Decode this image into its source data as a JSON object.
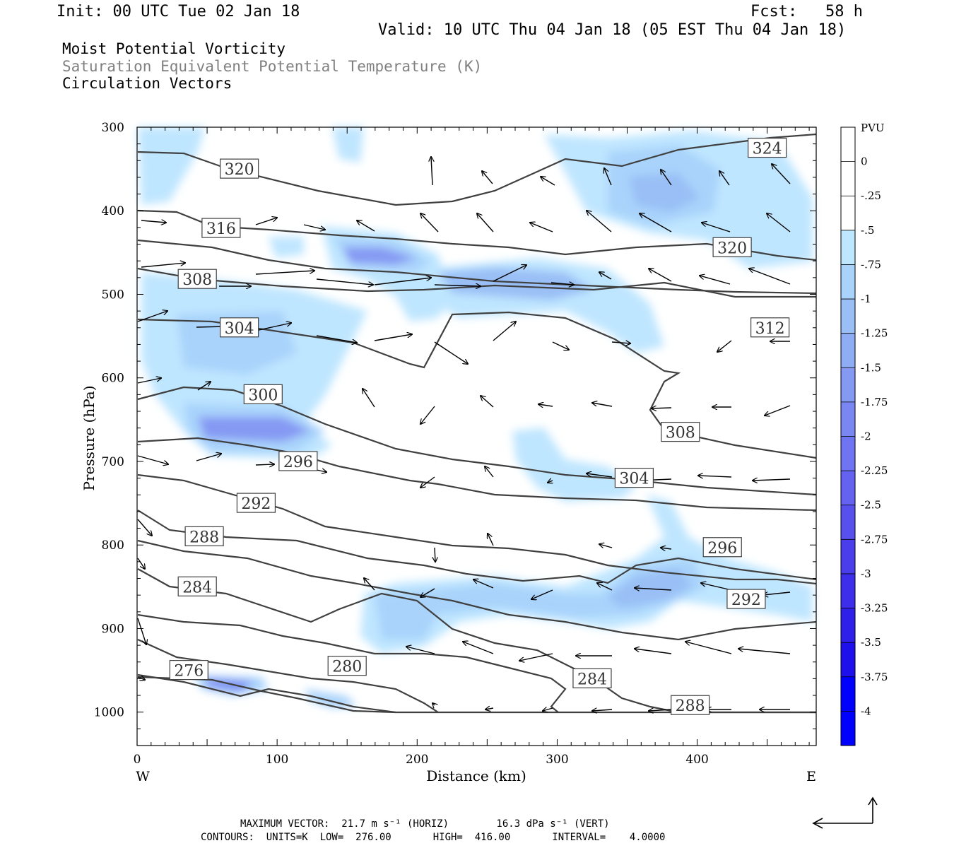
{
  "header": {
    "init": "Init: 00 UTC Tue 02 Jan 18",
    "fcst": "Fcst:   58 h",
    "valid": "Valid: 10 UTC Thu 04 Jan 18 (05 EST Thu 04 Jan 18)",
    "line1": "Moist Potential Vorticity",
    "line2": "Saturation Equivalent Potential Temperature (K)",
    "line3": "Circulation Vectors"
  },
  "footer": {
    "max_vector": "MAXIMUM VECTOR:  21.7 m s⁻¹ (HORIZ)        16.3 dPa s⁻¹ (VERT)",
    "contours": "CONTOURS:  UNITS=K  LOW=  276.00       HIGH=  416.00       INTERVAL=    4.0000"
  },
  "colors": {
    "line": "#404040",
    "pv_fills": [
      "#ffffff",
      "#ffffff",
      "#bfe6ff",
      "#a9d3fb",
      "#99bff6",
      "#8fadf5",
      "#8599f3",
      "#7a86f2",
      "#6f74f0",
      "#6462ee",
      "#5850ed",
      "#4a3eec",
      "#3c2eeb",
      "#2e20ea",
      "#1e10ea",
      "#0000ff"
    ]
  },
  "chart_data": {
    "type": "heatmap",
    "xlabel": "Distance (km)",
    "ylabel": "Pressure (hPa)",
    "x_ticks": [
      "0",
      "100",
      "200",
      "300",
      "400"
    ],
    "y_ticks": [
      "300",
      "400",
      "500",
      "600",
      "700",
      "800",
      "900",
      "1000"
    ],
    "xlim": [
      0,
      485
    ],
    "ylim": [
      1040,
      300
    ],
    "x_end_labels": {
      "left": "W",
      "right": "E"
    },
    "colorbar": {
      "title": "PVU",
      "labels": [
        "0",
        "-.25",
        "-.5",
        "-.75",
        "-1",
        "-1.25",
        "-1.5",
        "-1.75",
        "-2",
        "-2.25",
        "-2.5",
        "-2.75",
        "-3",
        "-3.25",
        "-3.5",
        "-3.75",
        "-4"
      ]
    },
    "contour_labels": [
      {
        "value": "324",
        "x": 450,
        "p": 325
      },
      {
        "value": "320",
        "x": 73,
        "p": 350
      },
      {
        "value": "316",
        "x": 60,
        "p": 421
      },
      {
        "value": "320",
        "x": 425,
        "p": 444
      },
      {
        "value": "308",
        "x": 43,
        "p": 482
      },
      {
        "value": "312",
        "x": 452,
        "p": 540
      },
      {
        "value": "304",
        "x": 73,
        "p": 540
      },
      {
        "value": "300",
        "x": 90,
        "p": 620
      },
      {
        "value": "308",
        "x": 388,
        "p": 665
      },
      {
        "value": "296",
        "x": 115,
        "p": 700
      },
      {
        "value": "304",
        "x": 355,
        "p": 720
      },
      {
        "value": "292",
        "x": 85,
        "p": 750
      },
      {
        "value": "288",
        "x": 48,
        "p": 790
      },
      {
        "value": "296",
        "x": 418,
        "p": 803
      },
      {
        "value": "284",
        "x": 43,
        "p": 850
      },
      {
        "value": "292",
        "x": 435,
        "p": 865
      },
      {
        "value": "280",
        "x": 150,
        "p": 945
      },
      {
        "value": "276",
        "x": 37,
        "p": 950
      },
      {
        "value": "284",
        "x": 325,
        "p": 960
      },
      {
        "value": "288",
        "x": 395,
        "p": 992
      }
    ]
  }
}
